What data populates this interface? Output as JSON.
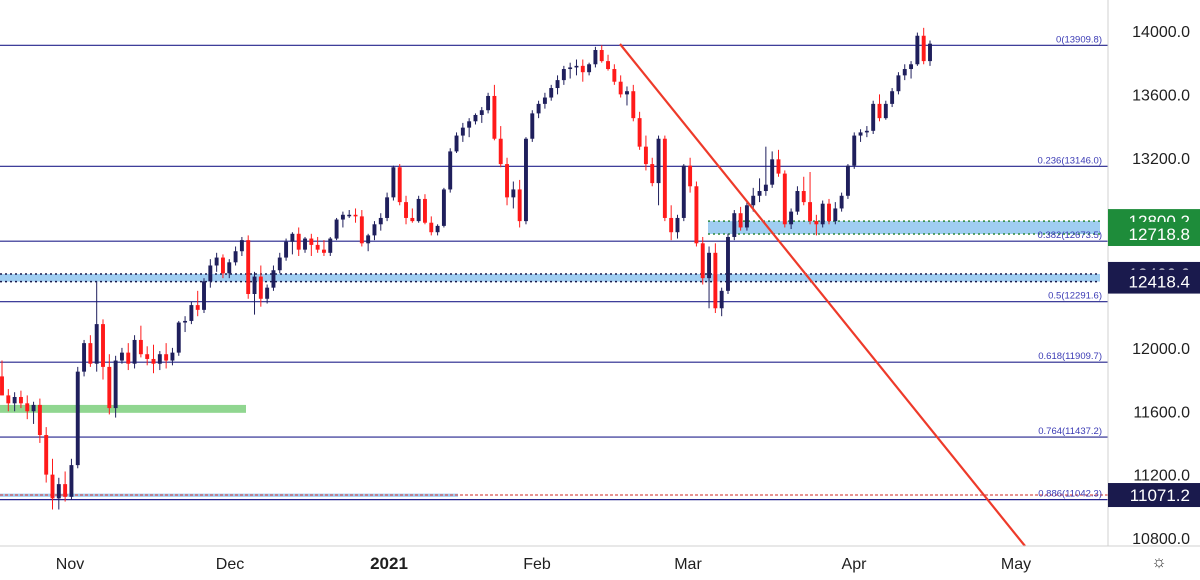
{
  "chart_data": {
    "type": "candlestick",
    "x_ticks": [
      "Nov",
      "Dec",
      "2021",
      "Feb",
      "Mar",
      "Apr",
      "May"
    ],
    "y_ticks": [
      10800,
      11200,
      11600,
      12000,
      12400,
      12800,
      13200,
      13600,
      14000
    ],
    "y_tick_labels": [
      "10800.0",
      "11200.0",
      "11600.0",
      "12000.0",
      "",
      "",
      "13200.0",
      "13600.0",
      "14000.0"
    ],
    "ylim": [
      10750,
      14150
    ],
    "fib_levels": [
      {
        "ratio": "0",
        "value": 13909.8,
        "label": "0(13909.8)"
      },
      {
        "ratio": "0.236",
        "value": 13146.0,
        "label": "0.236(13146.0)"
      },
      {
        "ratio": "0.382",
        "value": 12673.5,
        "label": "0.382(12673.5)"
      },
      {
        "ratio": "0.5",
        "value": 12291.6,
        "label": "0.5(12291.6)"
      },
      {
        "ratio": "0.618",
        "value": 11909.7,
        "label": "0.618(11909.7)"
      },
      {
        "ratio": "0.764",
        "value": 11437.2,
        "label": "0.764(11437.2)"
      },
      {
        "ratio": "0.886",
        "value": 11042.3,
        "label": "0.886(11042.3)"
      }
    ],
    "price_badges": [
      {
        "value": 12800.2,
        "label": "12800.2",
        "color": "#1e8c3a"
      },
      {
        "value": 12718.8,
        "label": "12718.8",
        "color": "#1e8c3a"
      },
      {
        "value": 12466.6,
        "label": "12466.6",
        "color": "#1a1a4d"
      },
      {
        "value": 12418.4,
        "label": "12418.4",
        "color": "#1a1a4d"
      },
      {
        "value": 11071.2,
        "label": "11071.2",
        "color": "#1a1a4d"
      }
    ],
    "zones": [
      {
        "from": 12718.8,
        "to": 12800.2,
        "color": "#8ec4ee"
      },
      {
        "from": 12418.4,
        "to": 12466.6,
        "color": "#8ec4ee"
      },
      {
        "from": 11590,
        "to": 11640,
        "color": "#7ccf7c"
      },
      {
        "from": 11060,
        "to": 11080,
        "color": "#8ec4ee"
      }
    ],
    "candles": [
      [
        11820,
        11920,
        11700,
        11700
      ],
      [
        11700,
        11740,
        11600,
        11650
      ],
      [
        11650,
        11720,
        11600,
        11690
      ],
      [
        11690,
        11730,
        11620,
        11650
      ],
      [
        11650,
        11700,
        11550,
        11600
      ],
      [
        11600,
        11660,
        11520,
        11640
      ],
      [
        11640,
        11680,
        11400,
        11450
      ],
      [
        11450,
        11500,
        11150,
        11200
      ],
      [
        11200,
        11300,
        10980,
        11050
      ],
      [
        11050,
        11180,
        10980,
        11140
      ],
      [
        11140,
        11220,
        11030,
        11060
      ],
      [
        11060,
        11300,
        11040,
        11260
      ],
      [
        11260,
        11880,
        11240,
        11850
      ],
      [
        11850,
        12050,
        11820,
        12030
      ],
      [
        12030,
        12080,
        11880,
        11900
      ],
      [
        11900,
        12420,
        11850,
        12150
      ],
      [
        12150,
        12180,
        11800,
        11880
      ],
      [
        11880,
        11960,
        11580,
        11620
      ],
      [
        11620,
        11950,
        11560,
        11920
      ],
      [
        11920,
        12000,
        11900,
        11970
      ],
      [
        11970,
        12030,
        11860,
        11900
      ],
      [
        11900,
        12080,
        11870,
        12050
      ],
      [
        12050,
        12140,
        11940,
        11960
      ],
      [
        11960,
        12010,
        11890,
        11930
      ],
      [
        11930,
        12020,
        11840,
        11900
      ],
      [
        11900,
        11980,
        11860,
        11960
      ],
      [
        11960,
        12030,
        11870,
        11920
      ],
      [
        11920,
        12000,
        11890,
        11970
      ],
      [
        11970,
        12170,
        11950,
        12160
      ],
      [
        12160,
        12200,
        12100,
        12170
      ],
      [
        12170,
        12290,
        12150,
        12270
      ],
      [
        12270,
        12360,
        12200,
        12240
      ],
      [
        12240,
        12440,
        12220,
        12420
      ],
      [
        12420,
        12560,
        12380,
        12520
      ],
      [
        12520,
        12600,
        12480,
        12570
      ],
      [
        12570,
        12590,
        12440,
        12470
      ],
      [
        12470,
        12560,
        12440,
        12540
      ],
      [
        12540,
        12640,
        12520,
        12610
      ],
      [
        12610,
        12700,
        12580,
        12680
      ],
      [
        12680,
        12710,
        12310,
        12340
      ],
      [
        12340,
        12480,
        12210,
        12450
      ],
      [
        12450,
        12520,
        12260,
        12310
      ],
      [
        12310,
        12400,
        12280,
        12380
      ],
      [
        12380,
        12520,
        12360,
        12490
      ],
      [
        12490,
        12600,
        12470,
        12570
      ],
      [
        12570,
        12690,
        12550,
        12670
      ],
      [
        12670,
        12730,
        12590,
        12720
      ],
      [
        12720,
        12760,
        12580,
        12620
      ],
      [
        12620,
        12700,
        12600,
        12690
      ],
      [
        12690,
        12720,
        12580,
        12650
      ],
      [
        12650,
        12700,
        12600,
        12620
      ],
      [
        12620,
        12680,
        12580,
        12600
      ],
      [
        12600,
        12700,
        12580,
        12690
      ],
      [
        12690,
        12820,
        12680,
        12810
      ],
      [
        12810,
        12860,
        12760,
        12840
      ],
      [
        12840,
        12870,
        12820,
        12840
      ],
      [
        12840,
        12880,
        12790,
        12830
      ],
      [
        12830,
        12870,
        12640,
        12660
      ],
      [
        12660,
        12720,
        12610,
        12710
      ],
      [
        12710,
        12800,
        12680,
        12780
      ],
      [
        12780,
        12850,
        12740,
        12820
      ],
      [
        12820,
        12980,
        12800,
        12950
      ],
      [
        12950,
        13150,
        12930,
        13140
      ],
      [
        13140,
        13160,
        12900,
        12920
      ],
      [
        12920,
        12960,
        12780,
        12820
      ],
      [
        12820,
        12880,
        12790,
        12800
      ],
      [
        12800,
        12960,
        12790,
        12940
      ],
      [
        12940,
        12970,
        12780,
        12790
      ],
      [
        12790,
        12830,
        12710,
        12730
      ],
      [
        12730,
        12780,
        12710,
        12770
      ],
      [
        12770,
        13010,
        12760,
        13000
      ],
      [
        13000,
        13260,
        12980,
        13240
      ],
      [
        13240,
        13360,
        13230,
        13340
      ],
      [
        13340,
        13420,
        13300,
        13390
      ],
      [
        13390,
        13450,
        13330,
        13430
      ],
      [
        13430,
        13480,
        13410,
        13470
      ],
      [
        13470,
        13520,
        13420,
        13500
      ],
      [
        13500,
        13610,
        13480,
        13590
      ],
      [
        13590,
        13660,
        13310,
        13320
      ],
      [
        13320,
        13400,
        13140,
        13160
      ],
      [
        13160,
        13200,
        12900,
        12950
      ],
      [
        12950,
        13050,
        12880,
        13000
      ],
      [
        13000,
        13060,
        12760,
        12800
      ],
      [
        12800,
        13330,
        12780,
        13320
      ],
      [
        13320,
        13500,
        13300,
        13480
      ],
      [
        13480,
        13560,
        13450,
        13540
      ],
      [
        13540,
        13610,
        13510,
        13580
      ],
      [
        13580,
        13660,
        13560,
        13640
      ],
      [
        13640,
        13720,
        13600,
        13690
      ],
      [
        13690,
        13780,
        13660,
        13760
      ],
      [
        13760,
        13800,
        13700,
        13770
      ],
      [
        13770,
        13820,
        13720,
        13780
      ],
      [
        13780,
        13820,
        13680,
        13740
      ],
      [
        13740,
        13800,
        13720,
        13790
      ],
      [
        13790,
        13900,
        13770,
        13880
      ],
      [
        13880,
        13910,
        13800,
        13810
      ],
      [
        13810,
        13850,
        13750,
        13760
      ],
      [
        13760,
        13790,
        13660,
        13680
      ],
      [
        13680,
        13720,
        13580,
        13600
      ],
      [
        13600,
        13650,
        13530,
        13620
      ],
      [
        13620,
        13660,
        13430,
        13450
      ],
      [
        13450,
        13490,
        13250,
        13270
      ],
      [
        13270,
        13340,
        13120,
        13160
      ],
      [
        13160,
        13200,
        13020,
        13040
      ],
      [
        13040,
        13340,
        12900,
        13320
      ],
      [
        13320,
        13340,
        12800,
        12820
      ],
      [
        12820,
        12900,
        12680,
        12730
      ],
      [
        12730,
        12840,
        12690,
        12820
      ],
      [
        12820,
        13160,
        12800,
        13150
      ],
      [
        13150,
        13200,
        12980,
        13020
      ],
      [
        13020,
        13050,
        12640,
        12660
      ],
      [
        12660,
        12700,
        12400,
        12440
      ],
      [
        12440,
        12640,
        12250,
        12600
      ],
      [
        12600,
        12660,
        12220,
        12250
      ],
      [
        12250,
        12380,
        12200,
        12360
      ],
      [
        12360,
        12720,
        12340,
        12700
      ],
      [
        12700,
        12870,
        12680,
        12850
      ],
      [
        12850,
        12890,
        12740,
        12760
      ],
      [
        12760,
        12920,
        12740,
        12900
      ],
      [
        12900,
        13010,
        12860,
        12960
      ],
      [
        12960,
        13070,
        12920,
        12990
      ],
      [
        12990,
        13270,
        12960,
        13030
      ],
      [
        13030,
        13240,
        13010,
        13190
      ],
      [
        13190,
        13250,
        13080,
        13100
      ],
      [
        13100,
        13120,
        12760,
        12780
      ],
      [
        12780,
        12880,
        12750,
        12860
      ],
      [
        12860,
        13020,
        12840,
        12990
      ],
      [
        12990,
        13080,
        12900,
        12920
      ],
      [
        12920,
        13110,
        12780,
        12800
      ],
      [
        12800,
        12840,
        12710,
        12780
      ],
      [
        12780,
        12930,
        12760,
        12910
      ],
      [
        12910,
        12940,
        12780,
        12800
      ],
      [
        12800,
        12920,
        12780,
        12880
      ],
      [
        12880,
        12980,
        12860,
        12960
      ],
      [
        12960,
        13160,
        12940,
        13150
      ],
      [
        13150,
        13360,
        13130,
        13340
      ],
      [
        13340,
        13380,
        13300,
        13360
      ],
      [
        13360,
        13400,
        13330,
        13370
      ],
      [
        13370,
        13560,
        13350,
        13540
      ],
      [
        13540,
        13600,
        13430,
        13450
      ],
      [
        13450,
        13560,
        13440,
        13540
      ],
      [
        13540,
        13640,
        13520,
        13620
      ],
      [
        13620,
        13740,
        13600,
        13720
      ],
      [
        13720,
        13790,
        13690,
        13760
      ],
      [
        13760,
        13810,
        13700,
        13790
      ],
      [
        13790,
        13990,
        13780,
        13970
      ],
      [
        13970,
        14020,
        13790,
        13810
      ],
      [
        13810,
        13940,
        13780,
        13920
      ]
    ]
  }
}
